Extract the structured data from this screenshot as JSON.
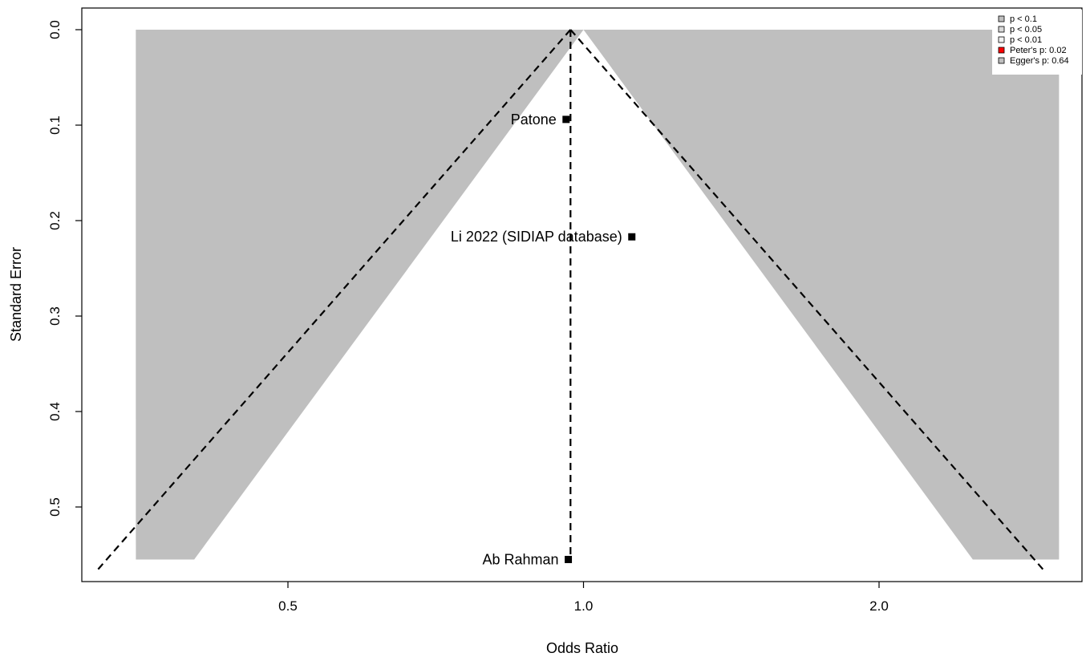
{
  "chart_data": {
    "type": "scatter",
    "subtype": "contour-enhanced funnel plot",
    "xlabel": "Odds Ratio",
    "ylabel": "Standard Error",
    "x_scale": "log",
    "x_ticks": [
      0.5,
      1.0,
      2.0
    ],
    "x_tick_labels": [
      "0.5",
      "1.0",
      "2.0"
    ],
    "xlim": [
      0.35,
      3.05
    ],
    "y_ticks": [
      0.0,
      0.1,
      0.2,
      0.3,
      0.4,
      0.5
    ],
    "y_tick_labels": [
      "0.0",
      "0.1",
      "0.2",
      "0.3",
      "0.4",
      "0.5"
    ],
    "ylim": [
      0.0,
      0.555
    ],
    "y_reversed": true,
    "pooled_estimate": 0.97,
    "funnel_null": 1.0,
    "studies": [
      {
        "label": "Patone",
        "or": 0.96,
        "se": 0.094
      },
      {
        "label": "Li 2022 (SIDIAP database)",
        "or": 1.12,
        "se": 0.217
      },
      {
        "label": "Ab Rahman",
        "or": 0.965,
        "se": 0.555
      }
    ],
    "contours": [
      {
        "p": 0.1,
        "color": "#bfbfbf"
      },
      {
        "p": 0.05,
        "color": "#d9d9d9"
      },
      {
        "p": 0.01,
        "color": "#f2f2f2"
      }
    ],
    "legend": {
      "position": "top-right",
      "items": [
        {
          "label": "p < 0.1",
          "color": "#bfbfbf"
        },
        {
          "label": "p < 0.05",
          "color": "#d9d9d9"
        },
        {
          "label": "p < 0.01",
          "color": "#f2f2f2"
        },
        {
          "label": "Peter's p: 0.02",
          "color": "#ff0000"
        },
        {
          "label": "Egger's p: 0.64",
          "color": "#bfbfbf"
        }
      ]
    }
  }
}
